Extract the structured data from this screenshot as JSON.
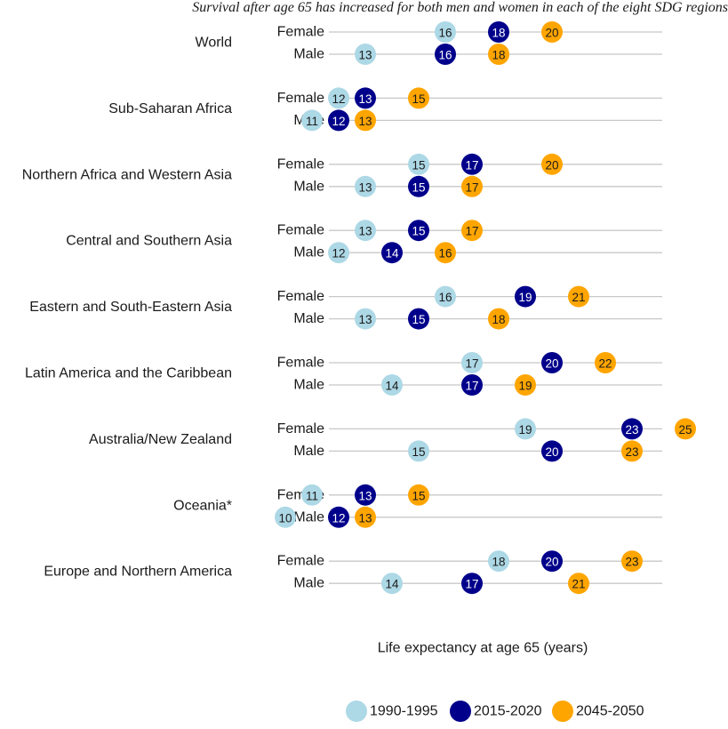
{
  "chart_data": {
    "type": "dot-plot",
    "title": "Survival after age 65 has increased for both men and women in each of the eight SDG regions",
    "xlabel": "Life expectancy at age 65 (years)",
    "xlim": [
      9.2,
      25.5
    ],
    "legend_position": "bottom",
    "grid": false,
    "series": [
      {
        "name": "1990-1995",
        "color": "#add8e6",
        "text_color": "#1a1a1a"
      },
      {
        "name": "2015-2020",
        "color": "#00008b",
        "text_color": "#ffffff"
      },
      {
        "name": "2045-2050",
        "color": "#ffa500",
        "text_color": "#1a1a1a"
      }
    ],
    "regions": [
      {
        "name": "World",
        "rows": [
          {
            "sex": "Female",
            "values": [
              16,
              18,
              20
            ]
          },
          {
            "sex": "Male",
            "values": [
              13,
              16,
              18
            ]
          }
        ]
      },
      {
        "name": "Sub-Saharan Africa",
        "rows": [
          {
            "sex": "Female",
            "values": [
              12,
              13,
              15
            ]
          },
          {
            "sex": "Male",
            "values": [
              11,
              12,
              13
            ]
          }
        ]
      },
      {
        "name": "Northern Africa and Western Asia",
        "rows": [
          {
            "sex": "Female",
            "values": [
              15,
              17,
              20
            ]
          },
          {
            "sex": "Male",
            "values": [
              13,
              15,
              17
            ]
          }
        ]
      },
      {
        "name": "Central and Southern Asia",
        "rows": [
          {
            "sex": "Female",
            "values": [
              13,
              15,
              17
            ]
          },
          {
            "sex": "Male",
            "values": [
              12,
              14,
              16
            ]
          }
        ]
      },
      {
        "name": "Eastern and South-Eastern Asia",
        "rows": [
          {
            "sex": "Female",
            "values": [
              16,
              19,
              21
            ]
          },
          {
            "sex": "Male",
            "values": [
              13,
              15,
              18
            ]
          }
        ]
      },
      {
        "name": "Latin America and the Caribbean",
        "rows": [
          {
            "sex": "Female",
            "values": [
              17,
              20,
              22
            ]
          },
          {
            "sex": "Male",
            "values": [
              14,
              17,
              19
            ]
          }
        ]
      },
      {
        "name": "Australia/New Zealand",
        "rows": [
          {
            "sex": "Female",
            "values": [
              19,
              23,
              25
            ]
          },
          {
            "sex": "Male",
            "values": [
              15,
              20,
              23
            ]
          }
        ]
      },
      {
        "name": "Oceania*",
        "rows": [
          {
            "sex": "Female",
            "values": [
              11,
              13,
              15
            ]
          },
          {
            "sex": "Male",
            "values": [
              10,
              12,
              13
            ]
          }
        ]
      },
      {
        "name": "Europe and Northern America",
        "rows": [
          {
            "sex": "Female",
            "values": [
              18,
              20,
              23
            ]
          },
          {
            "sex": "Male",
            "values": [
              14,
              17,
              21
            ]
          }
        ]
      }
    ]
  }
}
